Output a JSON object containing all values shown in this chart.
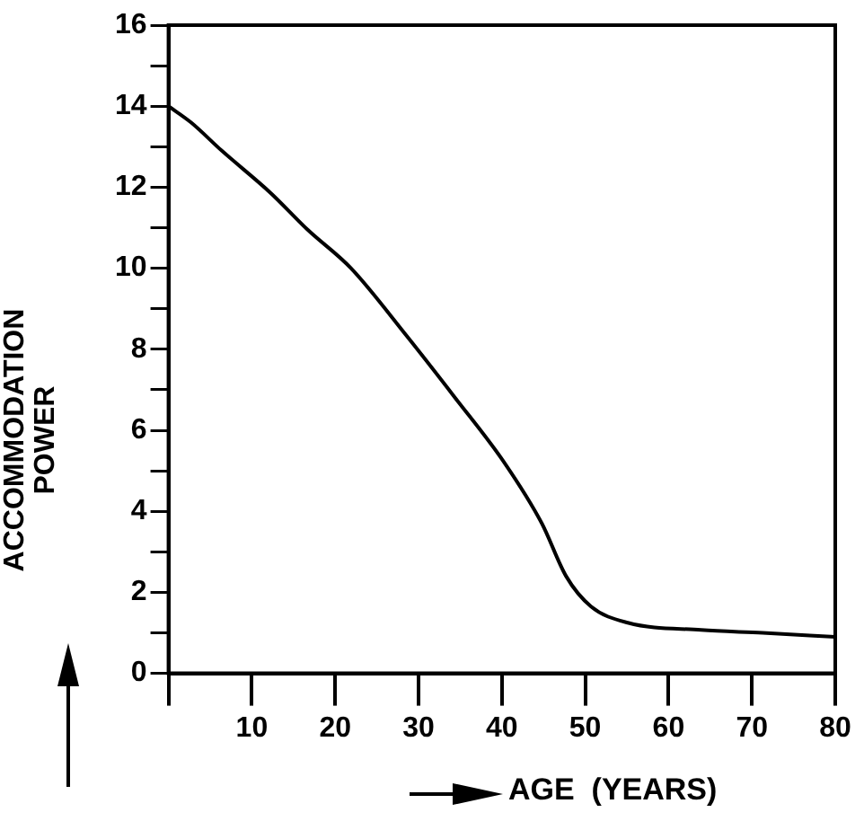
{
  "chart_data": {
    "type": "line",
    "xlabel": "AGE  (YEARS)",
    "ylabel": "ACCOMMODATION POWER",
    "x": [
      0,
      2.7,
      6.4,
      12.3,
      16.7,
      21.9,
      28.5,
      34.4,
      40.3,
      44.8,
      47.7,
      50.7,
      55.1,
      63.9,
      71.3,
      80
    ],
    "series": [
      {
        "color": "#000000",
        "values": [
          14,
          13.6,
          12.9,
          11.85,
          10.95,
          10,
          8.35,
          6.8,
          5.2,
          3.7,
          2.4,
          1.65,
          1.25,
          1.07,
          1,
          0.9
        ]
      }
    ],
    "xlim": [
      0,
      80
    ],
    "ylim": [
      0,
      16
    ],
    "xticks": [
      {
        "value": 0,
        "label": null
      },
      10,
      20,
      30,
      40,
      50,
      60,
      70,
      80
    ],
    "yticks": [
      0,
      {
        "value": 1,
        "label": null
      },
      2,
      {
        "value": 3,
        "label": null
      },
      4,
      {
        "value": 5,
        "label": null
      },
      6,
      {
        "value": 7,
        "label": null
      },
      8,
      {
        "value": 9,
        "label": null
      },
      10,
      {
        "value": 11,
        "label": null
      },
      12,
      {
        "value": 13,
        "label": null
      },
      14,
      {
        "value": 15,
        "label": null
      },
      16
    ],
    "grid": false,
    "legend": false,
    "marker": "none",
    "line_style": "solid"
  }
}
